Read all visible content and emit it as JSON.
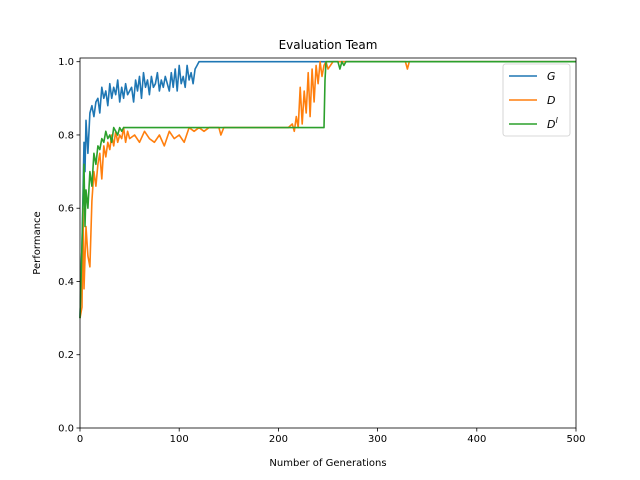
{
  "chart_data": {
    "type": "line",
    "title": "Evaluation Team",
    "xlabel": "Number of Generations",
    "ylabel": "Performance",
    "xlim": [
      0,
      500
    ],
    "ylim": [
      0,
      1.0
    ],
    "xticks": [
      0,
      100,
      200,
      300,
      400,
      500
    ],
    "yticks": [
      0.0,
      0.2,
      0.4,
      0.6,
      0.8,
      1.0
    ],
    "grid": false,
    "legend_position": "top-right",
    "series": [
      {
        "name": "G",
        "legend_base": "G",
        "legend_sup": "",
        "color": "#1f77b4",
        "x": [
          0,
          2,
          4,
          5,
          6,
          8,
          10,
          12,
          14,
          16,
          18,
          20,
          22,
          24,
          26,
          28,
          30,
          32,
          34,
          36,
          38,
          40,
          42,
          44,
          46,
          48,
          50,
          52,
          54,
          56,
          58,
          60,
          62,
          64,
          66,
          68,
          70,
          72,
          74,
          76,
          78,
          80,
          82,
          84,
          86,
          88,
          90,
          92,
          94,
          96,
          98,
          100,
          102,
          104,
          106,
          108,
          110,
          112,
          114,
          116,
          118,
          120,
          124,
          130,
          150,
          200,
          300,
          400,
          500
        ],
        "y": [
          0.3,
          0.5,
          0.78,
          0.7,
          0.84,
          0.75,
          0.86,
          0.88,
          0.85,
          0.89,
          0.9,
          0.86,
          0.93,
          0.9,
          0.92,
          0.88,
          0.94,
          0.9,
          0.93,
          0.91,
          0.95,
          0.89,
          0.93,
          0.9,
          0.94,
          0.91,
          0.92,
          0.93,
          0.89,
          0.95,
          0.92,
          0.96,
          0.9,
          0.97,
          0.93,
          0.95,
          0.91,
          0.96,
          0.93,
          0.94,
          0.97,
          0.92,
          0.95,
          0.93,
          0.96,
          0.94,
          0.92,
          0.97,
          0.93,
          0.98,
          0.92,
          0.99,
          0.94,
          0.96,
          0.93,
          0.99,
          0.95,
          0.97,
          0.94,
          0.98,
          0.99,
          1.0,
          1.0,
          1.0,
          1.0,
          1.0,
          1.0,
          1.0,
          1.0
        ]
      },
      {
        "name": "D",
        "legend_base": "D",
        "legend_sup": "",
        "color": "#ff7f0e",
        "x": [
          0,
          2,
          3,
          4,
          6,
          8,
          10,
          12,
          14,
          16,
          18,
          20,
          22,
          24,
          26,
          28,
          30,
          32,
          34,
          36,
          38,
          40,
          42,
          44,
          46,
          48,
          50,
          55,
          60,
          65,
          70,
          75,
          80,
          85,
          90,
          95,
          100,
          105,
          110,
          115,
          120,
          125,
          130,
          140,
          142,
          145,
          150,
          160,
          180,
          200,
          210,
          214,
          216,
          218,
          220,
          222,
          224,
          226,
          228,
          230,
          232,
          234,
          236,
          238,
          240,
          242,
          244,
          246,
          248,
          250,
          255,
          260,
          270,
          280,
          300,
          320,
          328,
          330,
          332,
          340,
          400,
          500
        ],
        "y": [
          0.3,
          0.33,
          0.6,
          0.38,
          0.55,
          0.47,
          0.44,
          0.62,
          0.7,
          0.66,
          0.72,
          0.75,
          0.68,
          0.77,
          0.74,
          0.78,
          0.76,
          0.8,
          0.77,
          0.81,
          0.78,
          0.8,
          0.79,
          0.82,
          0.78,
          0.81,
          0.79,
          0.8,
          0.78,
          0.81,
          0.79,
          0.78,
          0.8,
          0.77,
          0.81,
          0.79,
          0.8,
          0.78,
          0.82,
          0.81,
          0.82,
          0.81,
          0.82,
          0.82,
          0.8,
          0.82,
          0.82,
          0.82,
          0.82,
          0.82,
          0.82,
          0.83,
          0.81,
          0.85,
          0.82,
          0.93,
          0.83,
          0.92,
          0.86,
          0.97,
          0.85,
          0.98,
          0.89,
          0.99,
          0.94,
          1.0,
          0.96,
          0.99,
          1.0,
          0.98,
          1.0,
          1.0,
          1.0,
          1.0,
          1.0,
          1.0,
          1.0,
          0.98,
          1.0,
          1.0,
          1.0,
          1.0
        ]
      },
      {
        "name": "D^l",
        "legend_base": "D",
        "legend_sup": "l",
        "color": "#2ca02c",
        "x": [
          0,
          2,
          4,
          5,
          6,
          8,
          10,
          12,
          14,
          16,
          18,
          20,
          22,
          24,
          26,
          28,
          30,
          32,
          34,
          36,
          38,
          40,
          42,
          44,
          46,
          48,
          50,
          60,
          80,
          100,
          150,
          200,
          246,
          247,
          248,
          250,
          255,
          260,
          262,
          264,
          266,
          268,
          270,
          300,
          400,
          500
        ],
        "y": [
          0.3,
          0.5,
          0.72,
          0.55,
          0.65,
          0.6,
          0.7,
          0.66,
          0.75,
          0.72,
          0.77,
          0.76,
          0.79,
          0.78,
          0.81,
          0.79,
          0.8,
          0.78,
          0.82,
          0.81,
          0.8,
          0.82,
          0.81,
          0.82,
          0.82,
          0.82,
          0.82,
          0.82,
          0.82,
          0.82,
          0.82,
          0.82,
          0.82,
          0.95,
          1.0,
          1.0,
          1.0,
          1.0,
          0.98,
          1.0,
          0.99,
          1.0,
          1.0,
          1.0,
          1.0,
          1.0
        ]
      }
    ]
  }
}
